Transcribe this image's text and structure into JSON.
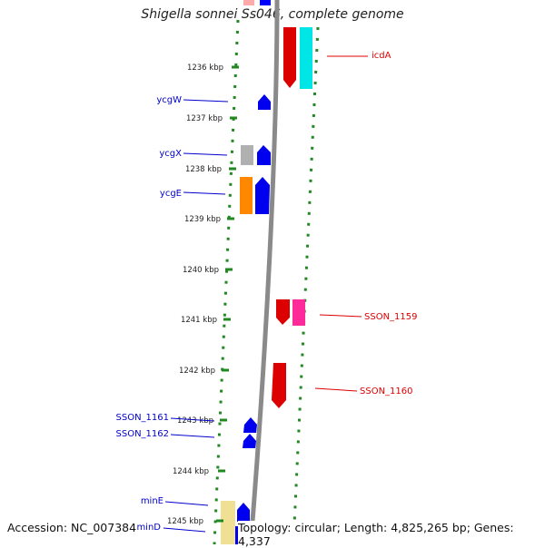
{
  "title": "Shigella sonnei Ss046, complete genome",
  "footer": {
    "accession": "Accession: NC_007384",
    "topology": "Topology: circular; Length: 4,825,265 bp; Genes: 4,337"
  },
  "ticks": [
    {
      "label": "1236 kbp"
    },
    {
      "label": "1237 kbp"
    },
    {
      "label": "1238 kbp"
    },
    {
      "label": "1239 kbp"
    },
    {
      "label": "1240 kbp"
    },
    {
      "label": "1241 kbp"
    },
    {
      "label": "1242 kbp"
    },
    {
      "label": "1243 kbp"
    },
    {
      "label": "1244 kbp"
    },
    {
      "label": "1245 kbp"
    }
  ],
  "genes": {
    "right": [
      {
        "name": "icdA",
        "color": "#dd0000"
      },
      {
        "name": "SSON_1159",
        "color": "#dd0000"
      },
      {
        "name": "SSON_1160",
        "color": "#dd0000"
      }
    ],
    "left": [
      {
        "name": "ycgW",
        "color": "#0000cc"
      },
      {
        "name": "ycgX",
        "color": "#0000cc"
      },
      {
        "name": "ycgE",
        "color": "#0000cc"
      },
      {
        "name": "SSON_1161",
        "color": "#0000cc"
      },
      {
        "name": "SSON_1162",
        "color": "#0000cc"
      },
      {
        "name": "minE",
        "color": "#0000cc"
      },
      {
        "name": "minD",
        "color": "#0000cc"
      }
    ]
  },
  "colors": {
    "forward_strand": "#ff0000",
    "reverse_strand": "#0000ff",
    "backbone": "#888888",
    "tick_marks": "#228822",
    "features": [
      "#00eeee",
      "#ff3399",
      "#ff8800",
      "#aaaaaa",
      "#eedd88"
    ]
  }
}
